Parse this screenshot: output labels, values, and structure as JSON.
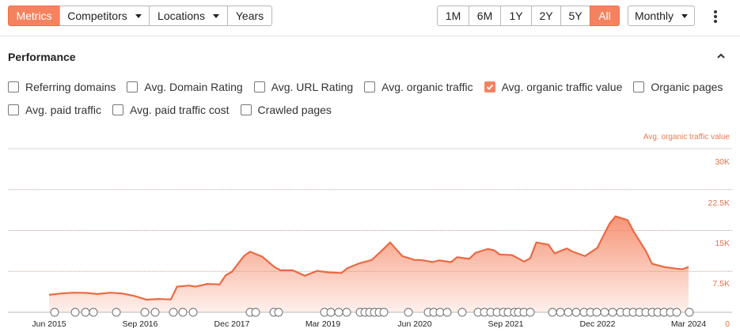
{
  "toolbar": {
    "left_tabs": [
      {
        "label": "Metrics",
        "active": true,
        "dropdown": false
      },
      {
        "label": "Competitors",
        "active": false,
        "dropdown": true
      },
      {
        "label": "Locations",
        "active": false,
        "dropdown": true
      },
      {
        "label": "Years",
        "active": false,
        "dropdown": false
      }
    ],
    "ranges": [
      {
        "label": "1M",
        "active": false
      },
      {
        "label": "6M",
        "active": false
      },
      {
        "label": "1Y",
        "active": false
      },
      {
        "label": "2Y",
        "active": false
      },
      {
        "label": "5Y",
        "active": false
      },
      {
        "label": "All",
        "active": true
      }
    ],
    "interval": "Monthly",
    "more_icon": "kebab-icon"
  },
  "performance": {
    "title": "Performance",
    "collapse_icon": "chevron-up-icon",
    "metrics_row1": [
      {
        "label": "Referring domains",
        "checked": false
      },
      {
        "label": "Avg. Domain Rating",
        "checked": false
      },
      {
        "label": "Avg. URL Rating",
        "checked": false
      },
      {
        "label": "Avg. organic traffic",
        "checked": false
      },
      {
        "label": "Avg. organic traffic value",
        "checked": true
      },
      {
        "label": "Organic pages",
        "checked": false
      }
    ],
    "metrics_row2": [
      {
        "label": "Avg. paid traffic",
        "checked": false
      },
      {
        "label": "Avg. paid traffic cost",
        "checked": false
      },
      {
        "label": "Crawled pages",
        "checked": false
      }
    ]
  },
  "colors": {
    "accent": "#f5825f",
    "line": "#ea6a42",
    "axis_text": "#e2704a"
  },
  "chart_data": {
    "type": "area",
    "series": [
      {
        "name": "Avg. organic traffic value",
        "color": "#ea6a42"
      }
    ],
    "x_ticks": [
      "Jun 2015",
      "Sep 2016",
      "Dec 2017",
      "Mar 2019",
      "Jun 2020",
      "Sep 2021",
      "Dec 2022",
      "Mar 2024"
    ],
    "y_ticks": [
      "30K",
      "22.5K",
      "15K",
      "7.5K",
      "0"
    ],
    "ylim": [
      0,
      30000
    ],
    "grid": true,
    "legend_position": "top-right",
    "points": [
      {
        "x": "2015-06",
        "y": 3200
      },
      {
        "x": "2015-08",
        "y": 3450
      },
      {
        "x": "2015-10",
        "y": 3600
      },
      {
        "x": "2015-12",
        "y": 3550
      },
      {
        "x": "2016-02",
        "y": 3350
      },
      {
        "x": "2016-04",
        "y": 3600
      },
      {
        "x": "2016-06",
        "y": 3450
      },
      {
        "x": "2016-08",
        "y": 3000
      },
      {
        "x": "2016-10",
        "y": 2300
      },
      {
        "x": "2016-12",
        "y": 2450
      },
      {
        "x": "2017-02",
        "y": 2350
      },
      {
        "x": "2017-03",
        "y": 4700
      },
      {
        "x": "2017-05",
        "y": 4900
      },
      {
        "x": "2017-06",
        "y": 4700
      },
      {
        "x": "2017-08",
        "y": 5200
      },
      {
        "x": "2017-10",
        "y": 5100
      },
      {
        "x": "2017-11",
        "y": 6800
      },
      {
        "x": "2017-12",
        "y": 7400
      },
      {
        "x": "2018-02",
        "y": 10300
      },
      {
        "x": "2018-03",
        "y": 11100
      },
      {
        "x": "2018-05",
        "y": 10200
      },
      {
        "x": "2018-07",
        "y": 8300
      },
      {
        "x": "2018-08",
        "y": 7700
      },
      {
        "x": "2018-10",
        "y": 7700
      },
      {
        "x": "2018-12",
        "y": 6700
      },
      {
        "x": "2019-02",
        "y": 7600
      },
      {
        "x": "2019-04",
        "y": 7300
      },
      {
        "x": "2019-06",
        "y": 7200
      },
      {
        "x": "2019-07",
        "y": 8100
      },
      {
        "x": "2019-09",
        "y": 9000
      },
      {
        "x": "2019-11",
        "y": 9600
      },
      {
        "x": "2020-01",
        "y": 11700
      },
      {
        "x": "2020-02",
        "y": 12800
      },
      {
        "x": "2020-04",
        "y": 10300
      },
      {
        "x": "2020-06",
        "y": 9600
      },
      {
        "x": "2020-07",
        "y": 9600
      },
      {
        "x": "2020-09",
        "y": 9200
      },
      {
        "x": "2020-10",
        "y": 9500
      },
      {
        "x": "2020-12",
        "y": 9200
      },
      {
        "x": "2021-01",
        "y": 10100
      },
      {
        "x": "2021-03",
        "y": 9800
      },
      {
        "x": "2021-04",
        "y": 10900
      },
      {
        "x": "2021-06",
        "y": 11600
      },
      {
        "x": "2021-07",
        "y": 11400
      },
      {
        "x": "2021-08",
        "y": 10600
      },
      {
        "x": "2021-10",
        "y": 10500
      },
      {
        "x": "2021-12",
        "y": 9300
      },
      {
        "x": "2022-01",
        "y": 9900
      },
      {
        "x": "2022-02",
        "y": 12800
      },
      {
        "x": "2022-04",
        "y": 12400
      },
      {
        "x": "2022-05",
        "y": 10800
      },
      {
        "x": "2022-07",
        "y": 11700
      },
      {
        "x": "2022-08",
        "y": 11100
      },
      {
        "x": "2022-10",
        "y": 10300
      },
      {
        "x": "2022-12",
        "y": 11800
      },
      {
        "x": "2023-02",
        "y": 16200
      },
      {
        "x": "2023-03",
        "y": 17600
      },
      {
        "x": "2023-05",
        "y": 16900
      },
      {
        "x": "2023-06",
        "y": 14800
      },
      {
        "x": "2023-08",
        "y": 11200
      },
      {
        "x": "2023-09",
        "y": 8900
      },
      {
        "x": "2023-11",
        "y": 8300
      },
      {
        "x": "2024-01",
        "y": 8000
      },
      {
        "x": "2024-02",
        "y": 7900
      },
      {
        "x": "2024-03",
        "y": 8300
      }
    ]
  }
}
